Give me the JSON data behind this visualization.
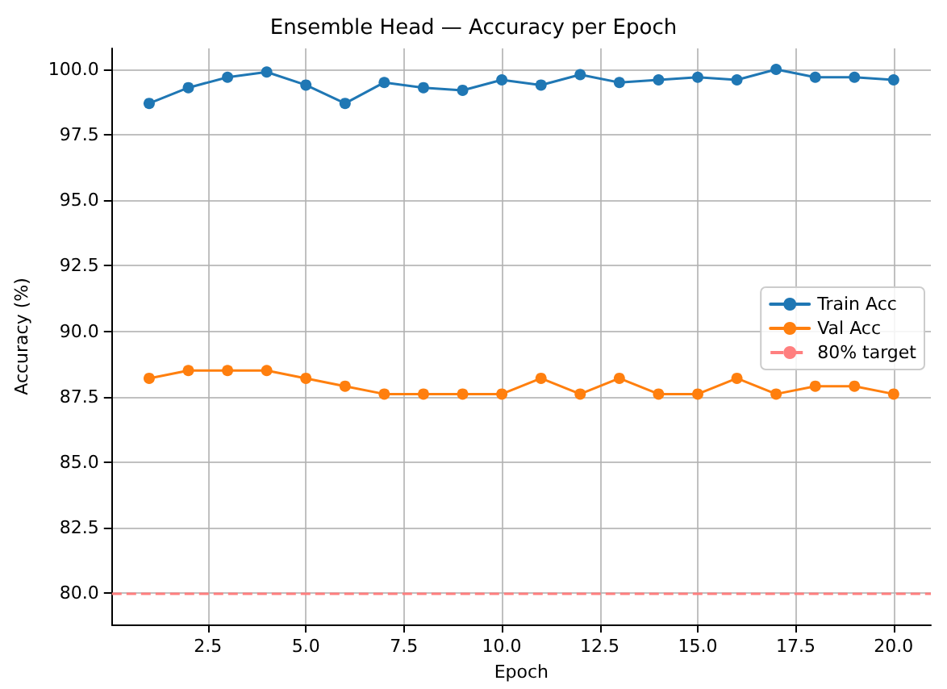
{
  "chart_data": {
    "type": "line",
    "title": "Ensemble Head — Accuracy per Epoch",
    "xlabel": "Epoch",
    "ylabel": "Accuracy (%)",
    "x": [
      1,
      2,
      3,
      4,
      5,
      6,
      7,
      8,
      9,
      10,
      11,
      12,
      13,
      14,
      15,
      16,
      17,
      18,
      19,
      20
    ],
    "series": [
      {
        "name": "Train Acc",
        "color": "#1f77b4",
        "values": [
          98.7,
          99.3,
          99.7,
          99.9,
          99.4,
          98.7,
          99.5,
          99.3,
          99.2,
          99.6,
          99.4,
          99.8,
          99.5,
          99.6,
          99.7,
          99.6,
          100.0,
          99.7,
          99.7,
          99.6
        ]
      },
      {
        "name": "Val Acc",
        "color": "#ff7f0e",
        "values": [
          88.2,
          88.5,
          88.5,
          88.5,
          88.2,
          87.9,
          87.6,
          87.6,
          87.6,
          87.6,
          88.2,
          87.6,
          88.2,
          87.6,
          87.6,
          88.2,
          87.6,
          87.9,
          87.9,
          87.6
        ]
      }
    ],
    "ref_lines": [
      {
        "axis": "y",
        "value": 80,
        "label": "80% target",
        "color": "#ff7f7f",
        "line_style": "dashed"
      }
    ],
    "xlim": [
      0.05,
      20.95
    ],
    "xticks": [
      {
        "value": 2.5,
        "label": "2.5"
      },
      {
        "value": 5,
        "label": "5.0"
      },
      {
        "value": 7.5,
        "label": "7.5"
      },
      {
        "value": 10,
        "label": "10.0"
      },
      {
        "value": 12.5,
        "label": "12.5"
      },
      {
        "value": 15,
        "label": "15.0"
      },
      {
        "value": 17.5,
        "label": "17.5"
      },
      {
        "value": 20,
        "label": "20.0"
      }
    ],
    "ylim": [
      78.8,
      100.8
    ],
    "yticks": [
      {
        "value": 80,
        "label": "80.0"
      },
      {
        "value": 82.5,
        "label": "82.5"
      },
      {
        "value": 85,
        "label": "85.0"
      },
      {
        "value": 87.5,
        "label": "87.5"
      },
      {
        "value": 90,
        "label": "90.0"
      },
      {
        "value": 92.5,
        "label": "92.5"
      },
      {
        "value": 95,
        "label": "95.0"
      },
      {
        "value": 97.5,
        "label": "97.5"
      },
      {
        "value": 100,
        "label": "100.0"
      }
    ],
    "grid": true,
    "legend": "right",
    "marker": "circle",
    "line_style": "solid"
  }
}
